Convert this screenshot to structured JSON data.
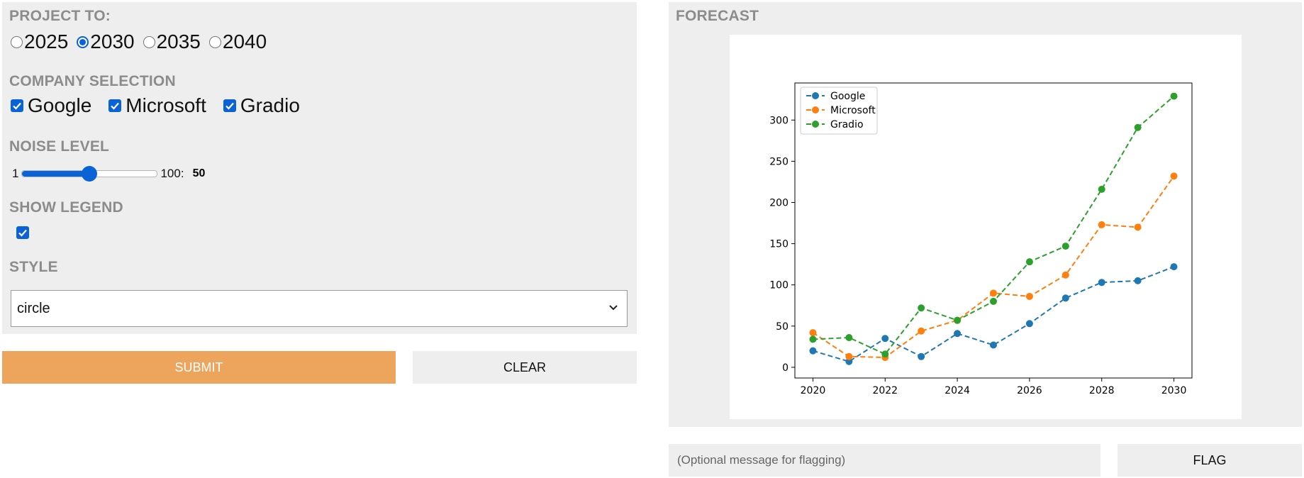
{
  "inputs": {
    "project_to": {
      "label": "PROJECT TO:",
      "options": [
        "2025",
        "2030",
        "2035",
        "2040"
      ],
      "selected": "2030"
    },
    "company_selection": {
      "label": "COMPANY SELECTION",
      "options": [
        "Google",
        "Microsoft",
        "Gradio"
      ],
      "checked": [
        true,
        true,
        true
      ]
    },
    "noise_level": {
      "label": "NOISE LEVEL",
      "min": "1",
      "max": "100:",
      "value": "50",
      "fraction": 0.495
    },
    "show_legend": {
      "label": "SHOW LEGEND",
      "checked": true
    },
    "style": {
      "label": "STYLE",
      "value": "circle"
    }
  },
  "buttons": {
    "submit": "SUBMIT",
    "clear": "CLEAR",
    "flag": "FLAG"
  },
  "output": {
    "label": "FORECAST",
    "flag_placeholder": "(Optional message for flagging)"
  },
  "icons": {
    "select_arrow": "chevron-down-icon",
    "check": "check-icon"
  },
  "colors": {
    "accent": "#0a63d6",
    "submit": "#eda45c",
    "panel": "#eeeeee"
  },
  "chart_data": {
    "type": "line",
    "x": [
      2020,
      2021,
      2022,
      2023,
      2024,
      2025,
      2026,
      2027,
      2028,
      2029,
      2030
    ],
    "series": [
      {
        "name": "Google",
        "color": "#1f77b4",
        "values": [
          20,
          7,
          35,
          13,
          41,
          27,
          53,
          84,
          103,
          105,
          122
        ]
      },
      {
        "name": "Microsoft",
        "color": "#ff7f0e",
        "values": [
          42,
          13,
          12,
          44,
          57,
          90,
          86,
          112,
          173,
          170,
          232
        ]
      },
      {
        "name": "Gradio",
        "color": "#2ca02c",
        "values": [
          34,
          36,
          16,
          72,
          57,
          80,
          128,
          147,
          216,
          291,
          329
        ]
      }
    ],
    "xticks": [
      "2020",
      "2022",
      "2024",
      "2026",
      "2028",
      "2030"
    ],
    "yticks": [
      "0",
      "50",
      "100",
      "150",
      "200",
      "250",
      "300"
    ],
    "xlim": [
      2019.5,
      2030.5
    ],
    "ylim": [
      -13,
      345
    ],
    "line_style": "dashed",
    "marker": "circle",
    "legend": "top-left",
    "grid": false
  }
}
